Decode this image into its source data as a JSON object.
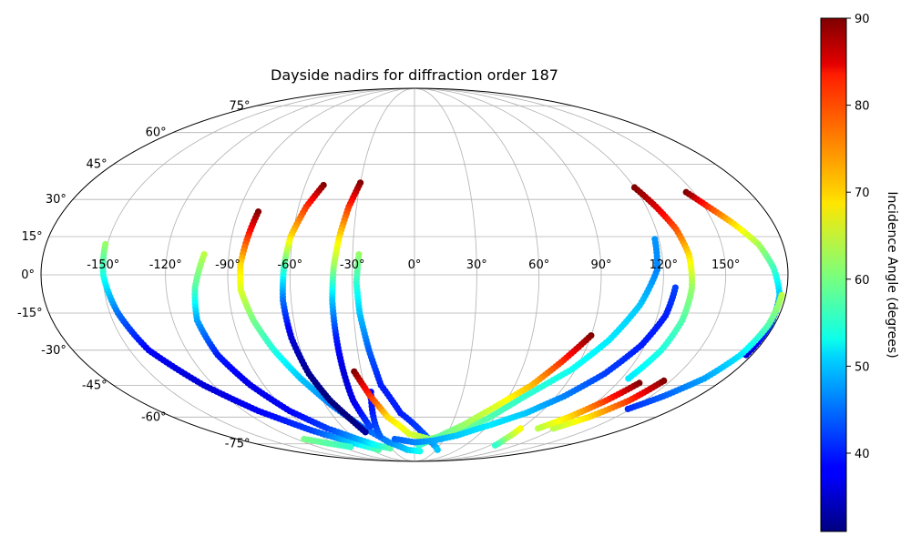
{
  "chart_data": {
    "type": "scatter",
    "projection": "mollweide",
    "title": "Dayside nadirs for diffraction order 187",
    "xlabel": "",
    "ylabel": "",
    "grid": true,
    "lon_ticks": [
      "-150°",
      "-120°",
      "-90°",
      "-60°",
      "-30°",
      "0°",
      "30°",
      "60°",
      "90°",
      "120°",
      "150°"
    ],
    "lon_tick_values": [
      -150,
      -120,
      -90,
      -60,
      -30,
      0,
      30,
      60,
      90,
      120,
      150
    ],
    "lat_ticks": [
      "75°",
      "60°",
      "45°",
      "30°",
      "15°",
      "0°",
      "-15°",
      "-30°",
      "-45°",
      "-60°",
      "-75°"
    ],
    "lat_tick_values": [
      75,
      60,
      45,
      30,
      15,
      0,
      -15,
      -30,
      -45,
      -60,
      -75
    ],
    "colormap": "jet",
    "colorbar": {
      "label": "Incidence Angle (degrees)",
      "range": [
        31,
        90
      ],
      "ticks": [
        "40",
        "50",
        "60",
        "70",
        "80",
        "90"
      ],
      "tick_values": [
        40,
        50,
        60,
        70,
        80,
        90
      ]
    },
    "series": [
      {
        "points": [
          [
            -151,
            12,
            62
          ],
          [
            -150,
            0,
            55
          ],
          [
            -146,
            -15,
            45
          ],
          [
            -140,
            -30,
            38
          ],
          [
            -126,
            -45,
            36
          ],
          [
            -110,
            -57,
            38
          ],
          [
            -90,
            -67,
            42
          ],
          [
            -70,
            -74,
            50
          ],
          [
            -50,
            -79,
            58
          ]
        ]
      },
      {
        "points": [
          [
            -102,
            8,
            64
          ],
          [
            -106,
            -5,
            58
          ],
          [
            -108,
            -18,
            48
          ],
          [
            -105,
            -32,
            40
          ],
          [
            -98,
            -45,
            37
          ],
          [
            -88,
            -57,
            38
          ],
          [
            -74,
            -66,
            42
          ],
          [
            -58,
            -72,
            48
          ],
          [
            -45,
            -76,
            54
          ],
          [
            -32,
            -78,
            58
          ]
        ]
      },
      {
        "points": [
          [
            -80,
            25,
            90
          ],
          [
            -82,
            15,
            80
          ],
          [
            -84,
            4,
            70
          ],
          [
            -84,
            -6,
            66
          ],
          [
            -80,
            -18,
            60
          ],
          [
            -74,
            -30,
            55
          ],
          [
            -66,
            -42,
            50
          ],
          [
            -56,
            -54,
            46
          ],
          [
            -44,
            -65,
            44
          ],
          [
            -28,
            -74,
            46
          ],
          [
            -10,
            -79,
            50
          ],
          [
            8,
            -80,
            54
          ]
        ]
      },
      {
        "points": [
          [
            -50,
            36,
            90
          ],
          [
            -56,
            27,
            80
          ],
          [
            -61,
            15,
            70
          ],
          [
            -63,
            3,
            57
          ],
          [
            -64,
            -10,
            45
          ],
          [
            -63,
            -25,
            36
          ],
          [
            -60,
            -40,
            32
          ],
          [
            -55,
            -52,
            31
          ],
          [
            -48,
            -62,
            31
          ],
          [
            -44,
            -68,
            33
          ]
        ]
      },
      {
        "points": [
          [
            -30,
            37,
            90
          ],
          [
            -34,
            27,
            80
          ],
          [
            -37,
            15,
            70
          ],
          [
            -39,
            3,
            62
          ],
          [
            -40,
            -10,
            50
          ],
          [
            -40,
            -25,
            40
          ],
          [
            -40,
            -40,
            36
          ],
          [
            -40,
            -52,
            37
          ],
          [
            -38,
            -60,
            40
          ],
          [
            -37,
            -65,
            42
          ]
        ]
      },
      {
        "points": [
          [
            -27,
            8,
            62
          ],
          [
            -28,
            -3,
            56
          ],
          [
            -27,
            -15,
            50
          ],
          [
            -24,
            -30,
            44
          ],
          [
            -20,
            -45,
            40
          ],
          [
            -10,
            -58,
            40
          ],
          [
            5,
            -67,
            42
          ],
          [
            18,
            -74,
            46
          ],
          [
            32,
            -79,
            50
          ]
        ]
      },
      {
        "points": [
          [
            -27,
            -48,
            38
          ],
          [
            -30,
            -58,
            40
          ],
          [
            -32,
            -65,
            42
          ],
          [
            -33,
            -70,
            44
          ]
        ]
      },
      {
        "points": [
          [
            -34,
            -39,
            90
          ],
          [
            -28,
            -50,
            80
          ],
          [
            -20,
            -60,
            70
          ],
          [
            -5,
            -69,
            66
          ],
          [
            15,
            -72,
            62
          ],
          [
            35,
            -69,
            60
          ],
          [
            55,
            -61,
            58
          ],
          [
            70,
            -50,
            56
          ],
          [
            88,
            -38,
            54
          ],
          [
            100,
            -26,
            52
          ],
          [
            110,
            -12,
            50
          ],
          [
            117,
            2,
            46
          ],
          [
            118,
            14,
            47
          ]
        ]
      },
      {
        "points": [
          [
            90,
            -24,
            90
          ],
          [
            80,
            -35,
            80
          ],
          [
            70,
            -45,
            72
          ],
          [
            55,
            -55,
            66
          ],
          [
            40,
            -64,
            62
          ],
          [
            20,
            -72,
            58
          ],
          [
            5,
            -76,
            56
          ]
        ]
      },
      {
        "points": [
          [
            -20,
            -72,
            44
          ],
          [
            0,
            -74,
            46
          ],
          [
            20,
            -73,
            48
          ],
          [
            40,
            -70,
            50
          ],
          [
            62,
            -64,
            52
          ],
          [
            80,
            -58,
            50
          ],
          [
            95,
            -50,
            46
          ],
          [
            108,
            -40,
            42
          ],
          [
            118,
            -28,
            40
          ],
          [
            124,
            -16,
            40
          ],
          [
            126,
            -5,
            42
          ]
        ]
      },
      {
        "points": [
          [
            120,
            35,
            90
          ],
          [
            125,
            27,
            85
          ],
          [
            130,
            18,
            78
          ],
          [
            133,
            8,
            70
          ],
          [
            134,
            -5,
            62
          ],
          [
            133,
            -18,
            58
          ],
          [
            130,
            -30,
            55
          ],
          [
            124,
            -42,
            52
          ]
        ]
      },
      {
        "points": [
          [
            146,
            33,
            90
          ],
          [
            152,
            27,
            80
          ],
          [
            160,
            20,
            70
          ],
          [
            168,
            12,
            63
          ],
          [
            173,
            3,
            57
          ],
          [
            177,
            -8,
            50
          ],
          [
            178,
            -20,
            42
          ],
          [
            177,
            -32,
            36
          ]
        ]
      },
      {
        "points": [
          [
            178,
            -8,
            64
          ],
          [
            177,
            -20,
            58
          ],
          [
            174,
            -32,
            52
          ],
          [
            168,
            -42,
            48
          ],
          [
            158,
            -50,
            44
          ],
          [
            148,
            -56,
            41
          ]
        ]
      },
      {
        "points": [
          [
            146,
            -43,
            90
          ],
          [
            140,
            -52,
            80
          ],
          [
            130,
            -60,
            70
          ],
          [
            118,
            -66,
            64
          ]
        ]
      },
      {
        "points": [
          [
            133,
            -44,
            90
          ],
          [
            125,
            -52,
            80
          ],
          [
            115,
            -60,
            70
          ],
          [
            105,
            -66,
            64
          ]
        ]
      },
      {
        "points": [
          [
            90,
            -66,
            68
          ],
          [
            92,
            -72,
            62
          ],
          [
            96,
            -76,
            56
          ]
        ]
      },
      {
        "points": [
          [
            -112,
            -72,
            60
          ],
          [
            -95,
            -75,
            58
          ],
          [
            -80,
            -77,
            56
          ]
        ]
      }
    ]
  }
}
